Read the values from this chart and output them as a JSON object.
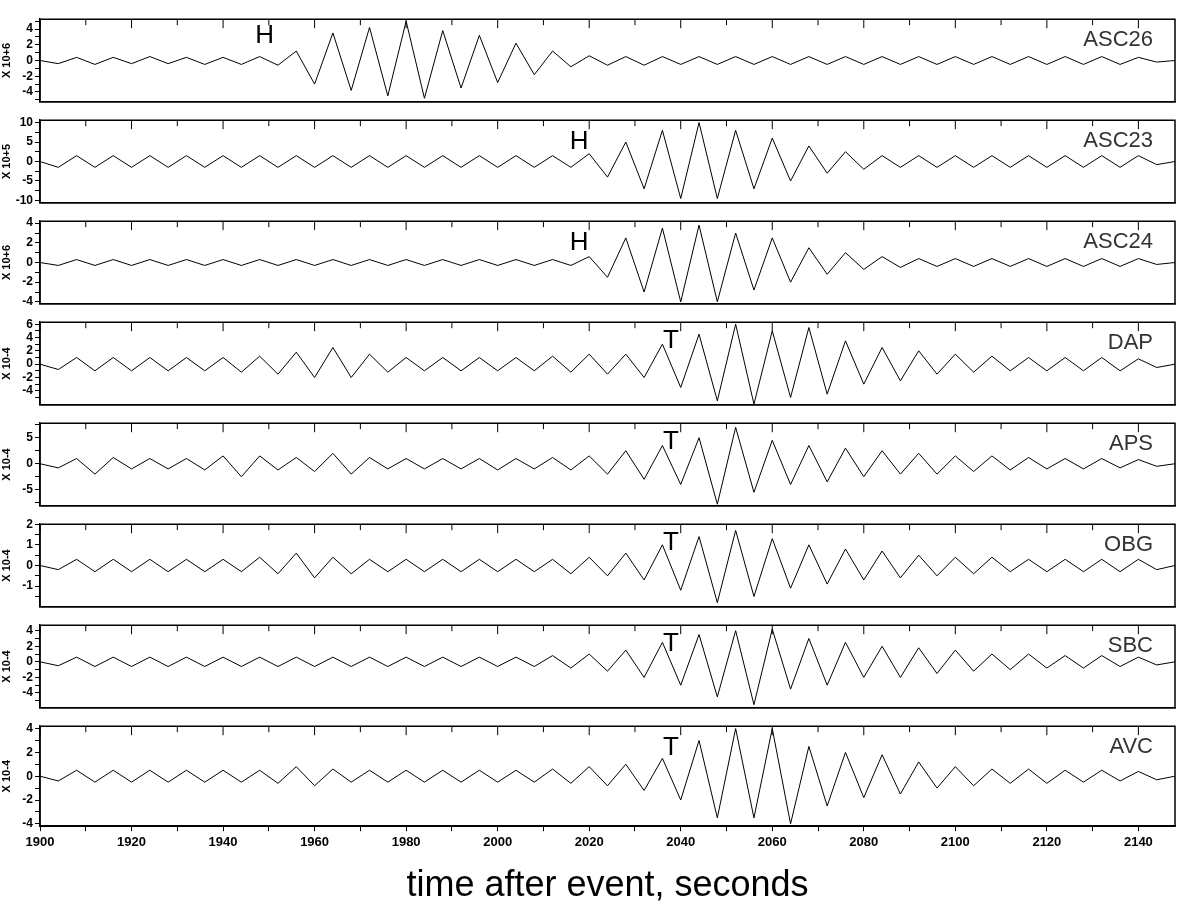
{
  "chart_data": [
    {
      "type": "line",
      "title": "ASC26",
      "ylabel": "X 10+6",
      "annotations": [
        "H"
      ],
      "color": "#000000",
      "tick_labels": "y",
      "xlim": [
        1900,
        2148
      ],
      "xticks": [
        1900,
        {
          "value": 1910,
          "label": null
        },
        1920,
        {
          "value": 1930,
          "label": null
        },
        1940,
        {
          "value": 1950,
          "label": null
        },
        1960,
        {
          "value": 1970,
          "label": null
        },
        1980,
        {
          "value": 1990,
          "label": null
        },
        2000,
        {
          "value": 2010,
          "label": null
        },
        2020,
        {
          "value": 2030,
          "label": null
        },
        2040,
        {
          "value": 2050,
          "label": null
        },
        2060,
        {
          "value": 2070,
          "label": null
        },
        2080,
        {
          "value": 2090,
          "label": null
        },
        2100,
        {
          "value": 2110,
          "label": null
        },
        2120,
        {
          "value": 2130,
          "label": null
        },
        2140
      ],
      "ylim": [
        -5.25,
        5.25
      ],
      "yticks": [
        {
          "value": -5,
          "label": null
        },
        -4,
        {
          "value": -3,
          "label": null
        },
        -2,
        {
          "value": -1,
          "label": null
        },
        0,
        {
          "value": 1,
          "label": null
        },
        2,
        {
          "value": 3,
          "label": null
        },
        4,
        {
          "value": 5,
          "label": null
        }
      ],
      "x": [
        1900,
        1904,
        1908,
        1912,
        1916,
        1920,
        1924,
        1928,
        1932,
        1936,
        1940,
        1944,
        1948,
        1952,
        1956,
        1960,
        1964,
        1968,
        1972,
        1976,
        1980,
        1984,
        1988,
        1992,
        1996,
        2000,
        2004,
        2008,
        2012,
        2016,
        2020,
        2024,
        2028,
        2032,
        2036,
        2040,
        2044,
        2048,
        2052,
        2056,
        2060,
        2064,
        2068,
        2072,
        2076,
        2080,
        2084,
        2088,
        2092,
        2096,
        2100,
        2104,
        2108,
        2112,
        2116,
        2120,
        2124,
        2128,
        2132,
        2136,
        2140,
        2144,
        2148
      ],
      "values": [
        0,
        -0.4,
        0.4,
        -0.5,
        0.4,
        -0.4,
        0.5,
        -0.4,
        0.4,
        -0.5,
        0.4,
        -0.5,
        0.5,
        -0.6,
        1.2,
        -3.0,
        3.5,
        -3.8,
        4.2,
        -4.5,
        5.0,
        -4.8,
        3.8,
        -3.5,
        3.2,
        -2.8,
        2.2,
        -1.8,
        1.2,
        -0.8,
        0.6,
        -0.6,
        0.5,
        -0.6,
        0.5,
        -0.5,
        0.5,
        -0.5,
        0.5,
        -0.5,
        0.5,
        -0.5,
        0.5,
        -0.5,
        0.5,
        -0.5,
        0.5,
        -0.5,
        0.5,
        -0.5,
        0.5,
        -0.5,
        0.5,
        -0.5,
        0.5,
        -0.5,
        0.5,
        -0.5,
        0.5,
        -0.5,
        0.4,
        -0.2,
        0
      ]
    },
    {
      "type": "line",
      "title": "ASC23",
      "ylabel": "X 10+5",
      "annotations": [
        "H"
      ],
      "color": "#000000",
      "tick_labels": "y",
      "xlim": [
        1900,
        2148
      ],
      "xticks": [
        1900,
        {
          "value": 1910,
          "label": null
        },
        1920,
        {
          "value": 1930,
          "label": null
        },
        1940,
        {
          "value": 1950,
          "label": null
        },
        1960,
        {
          "value": 1970,
          "label": null
        },
        1980,
        {
          "value": 1990,
          "label": null
        },
        2000,
        {
          "value": 2010,
          "label": null
        },
        2020,
        {
          "value": 2030,
          "label": null
        },
        2040,
        {
          "value": 2050,
          "label": null
        },
        2060,
        {
          "value": 2070,
          "label": null
        },
        2080,
        {
          "value": 2090,
          "label": null
        },
        2100,
        {
          "value": 2110,
          "label": null
        },
        2120,
        {
          "value": 2130,
          "label": null
        },
        2140
      ],
      "ylim": [
        -10.6,
        10.6
      ],
      "yticks": [
        -10,
        {
          "value": -7.5,
          "label": null
        },
        -5,
        {
          "value": -2.5,
          "label": null
        },
        0,
        {
          "value": 2.5,
          "label": null
        },
        5,
        {
          "value": 7.5,
          "label": null
        },
        10
      ],
      "x": [
        1900,
        1904,
        1908,
        1912,
        1916,
        1920,
        1924,
        1928,
        1932,
        1936,
        1940,
        1944,
        1948,
        1952,
        1956,
        1960,
        1964,
        1968,
        1972,
        1976,
        1980,
        1984,
        1988,
        1992,
        1996,
        2000,
        2004,
        2008,
        2012,
        2016,
        2020,
        2024,
        2028,
        2032,
        2036,
        2040,
        2044,
        2048,
        2052,
        2056,
        2060,
        2064,
        2068,
        2072,
        2076,
        2080,
        2084,
        2088,
        2092,
        2096,
        2100,
        2104,
        2108,
        2112,
        2116,
        2120,
        2124,
        2128,
        2132,
        2136,
        2140,
        2144,
        2148
      ],
      "values": [
        0,
        -1.5,
        1.5,
        -1.5,
        1.5,
        -1.5,
        1.5,
        -1.5,
        1.5,
        -1.5,
        1.5,
        -1.5,
        1.5,
        -1.5,
        1.5,
        -1.5,
        1.5,
        -1.5,
        1.5,
        -1.5,
        1.5,
        -1.5,
        1.5,
        -1.5,
        1.5,
        -1.5,
        1.5,
        -1.5,
        1.5,
        -1.5,
        2,
        -4,
        5,
        -7,
        8,
        -9.5,
        10,
        -9.5,
        8,
        -7,
        6,
        -5,
        4,
        -3,
        2.5,
        -2,
        1.5,
        -1.5,
        1.5,
        -1.5,
        1.5,
        -1.5,
        1.5,
        -1.5,
        1.5,
        -1.5,
        1.5,
        -1.5,
        1.5,
        -1.5,
        1.5,
        -0.8,
        0
      ]
    },
    {
      "type": "line",
      "title": "ASC24",
      "ylabel": "X 10+6",
      "annotations": [
        "H"
      ],
      "color": "#000000",
      "tick_labels": "y",
      "xlim": [
        1900,
        2148
      ],
      "xticks": [
        1900,
        {
          "value": 1910,
          "label": null
        },
        1920,
        {
          "value": 1930,
          "label": null
        },
        1940,
        {
          "value": 1950,
          "label": null
        },
        1960,
        {
          "value": 1970,
          "label": null
        },
        1980,
        {
          "value": 1990,
          "label": null
        },
        2000,
        {
          "value": 2010,
          "label": null
        },
        2020,
        {
          "value": 2030,
          "label": null
        },
        2040,
        {
          "value": 2050,
          "label": null
        },
        2060,
        {
          "value": 2070,
          "label": null
        },
        2080,
        {
          "value": 2090,
          "label": null
        },
        2100,
        {
          "value": 2110,
          "label": null
        },
        2120,
        {
          "value": 2130,
          "label": null
        },
        2140
      ],
      "ylim": [
        -4.2,
        4.2
      ],
      "yticks": [
        -4,
        {
          "value": -3,
          "label": null
        },
        -2,
        {
          "value": -1,
          "label": null
        },
        0,
        {
          "value": 1,
          "label": null
        },
        2,
        {
          "value": 3,
          "label": null
        },
        4
      ],
      "x": [
        1900,
        1904,
        1908,
        1912,
        1916,
        1920,
        1924,
        1928,
        1932,
        1936,
        1940,
        1944,
        1948,
        1952,
        1956,
        1960,
        1964,
        1968,
        1972,
        1976,
        1980,
        1984,
        1988,
        1992,
        1996,
        2000,
        2004,
        2008,
        2012,
        2016,
        2020,
        2024,
        2028,
        2032,
        2036,
        2040,
        2044,
        2048,
        2052,
        2056,
        2060,
        2064,
        2068,
        2072,
        2076,
        2080,
        2084,
        2088,
        2092,
        2096,
        2100,
        2104,
        2108,
        2112,
        2116,
        2120,
        2124,
        2128,
        2132,
        2136,
        2140,
        2144,
        2148
      ],
      "values": [
        0,
        -0.3,
        0.3,
        -0.3,
        0.3,
        -0.3,
        0.3,
        -0.3,
        0.3,
        -0.3,
        0.3,
        -0.3,
        0.3,
        -0.3,
        0.3,
        -0.3,
        0.3,
        -0.3,
        0.3,
        -0.3,
        0.3,
        -0.3,
        0.3,
        -0.3,
        0.3,
        -0.3,
        0.3,
        -0.3,
        0.3,
        -0.3,
        0.6,
        -1.5,
        2.5,
        -3.0,
        3.5,
        -4.0,
        3.8,
        -4.0,
        3.0,
        -2.8,
        2.5,
        -2.0,
        1.5,
        -1.2,
        1.0,
        -0.7,
        0.6,
        -0.5,
        0.4,
        -0.4,
        0.4,
        -0.4,
        0.4,
        -0.4,
        0.4,
        -0.4,
        0.4,
        -0.4,
        0.4,
        -0.4,
        0.4,
        -0.2,
        0
      ]
    },
    {
      "type": "line",
      "title": "DAP",
      "ylabel": "X 10-4",
      "annotations": [
        "T"
      ],
      "color": "#000000",
      "tick_labels": "y",
      "xlim": [
        1900,
        2148
      ],
      "xticks": [
        1900,
        {
          "value": 1910,
          "label": null
        },
        1920,
        {
          "value": 1930,
          "label": null
        },
        1940,
        {
          "value": 1950,
          "label": null
        },
        1960,
        {
          "value": 1970,
          "label": null
        },
        1980,
        {
          "value": 1990,
          "label": null
        },
        2000,
        {
          "value": 2010,
          "label": null
        },
        2020,
        {
          "value": 2030,
          "label": null
        },
        2040,
        {
          "value": 2050,
          "label": null
        },
        2060,
        {
          "value": 2070,
          "label": null
        },
        2080,
        {
          "value": 2090,
          "label": null
        },
        2100,
        {
          "value": 2110,
          "label": null
        },
        2120,
        {
          "value": 2130,
          "label": null
        },
        2140
      ],
      "ylim": [
        -6.1,
        6.3
      ],
      "yticks": [
        {
          "value": -5,
          "label": null
        },
        -4,
        {
          "value": -3,
          "label": null
        },
        -2,
        {
          "value": -1,
          "label": null
        },
        0,
        {
          "value": 1,
          "label": null
        },
        2,
        {
          "value": 3,
          "label": null
        },
        4,
        {
          "value": 5,
          "label": null
        },
        6
      ],
      "x": [
        1900,
        1904,
        1908,
        1912,
        1916,
        1920,
        1924,
        1928,
        1932,
        1936,
        1940,
        1944,
        1948,
        1952,
        1956,
        1960,
        1964,
        1968,
        1972,
        1976,
        1980,
        1984,
        1988,
        1992,
        1996,
        2000,
        2004,
        2008,
        2012,
        2016,
        2020,
        2024,
        2028,
        2032,
        2036,
        2040,
        2044,
        2048,
        2052,
        2056,
        2060,
        2064,
        2068,
        2072,
        2076,
        2080,
        2084,
        2088,
        2092,
        2096,
        2100,
        2104,
        2108,
        2112,
        2116,
        2120,
        2124,
        2128,
        2132,
        2136,
        2140,
        2144,
        2148
      ],
      "values": [
        0,
        -0.8,
        1.0,
        -1.0,
        1.0,
        -1.0,
        1.0,
        -1.0,
        1.0,
        -1.0,
        1.0,
        -1.2,
        1.2,
        -1.5,
        1.8,
        -2.0,
        2.5,
        -2.0,
        1.5,
        -1.2,
        1.0,
        -1.0,
        1.0,
        -1.0,
        1.0,
        -1.0,
        1.0,
        -1.0,
        1.2,
        -1.2,
        1.5,
        -1.5,
        1.5,
        -2.0,
        3.0,
        -3.5,
        4.5,
        -5.5,
        6.0,
        -6.0,
        5.0,
        -5.0,
        5.5,
        -4.5,
        3.5,
        -3.0,
        2.5,
        -2.5,
        2.0,
        -1.5,
        1.5,
        -1.2,
        1.2,
        -1.0,
        1.0,
        -1.0,
        1.0,
        -1.0,
        1.0,
        -1.0,
        0.8,
        -0.5,
        0
      ]
    },
    {
      "type": "line",
      "title": "APS",
      "ylabel": "X 10-4",
      "annotations": [
        "T"
      ],
      "color": "#000000",
      "tick_labels": "y",
      "xlim": [
        1900,
        2148
      ],
      "xticks": [
        1900,
        {
          "value": 1910,
          "label": null
        },
        1920,
        {
          "value": 1930,
          "label": null
        },
        1940,
        {
          "value": 1950,
          "label": null
        },
        1960,
        {
          "value": 1970,
          "label": null
        },
        1980,
        {
          "value": 1990,
          "label": null
        },
        2000,
        {
          "value": 2010,
          "label": null
        },
        2020,
        {
          "value": 2030,
          "label": null
        },
        2040,
        {
          "value": 2050,
          "label": null
        },
        2060,
        {
          "value": 2070,
          "label": null
        },
        2080,
        {
          "value": 2090,
          "label": null
        },
        2100,
        {
          "value": 2110,
          "label": null
        },
        2120,
        {
          "value": 2130,
          "label": null
        },
        2140
      ],
      "ylim": [
        -8.1,
        7.8
      ],
      "yticks": [
        {
          "value": -7.5,
          "label": null
        },
        -5,
        {
          "value": -2.5,
          "label": null
        },
        0,
        {
          "value": 2.5,
          "label": null
        },
        5,
        {
          "value": 7.5,
          "label": null
        }
      ],
      "x": [
        1900,
        1904,
        1908,
        1912,
        1916,
        1920,
        1924,
        1928,
        1932,
        1936,
        1940,
        1944,
        1948,
        1952,
        1956,
        1960,
        1964,
        1968,
        1972,
        1976,
        1980,
        1984,
        1988,
        1992,
        1996,
        2000,
        2004,
        2008,
        2012,
        2016,
        2020,
        2024,
        2028,
        2032,
        2036,
        2040,
        2044,
        2048,
        2052,
        2056,
        2060,
        2064,
        2068,
        2072,
        2076,
        2080,
        2084,
        2088,
        2092,
        2096,
        2100,
        2104,
        2108,
        2112,
        2116,
        2120,
        2124,
        2128,
        2132,
        2136,
        2140,
        2144,
        2148
      ],
      "values": [
        0,
        -0.8,
        1.0,
        -2.0,
        1.2,
        -1.0,
        1.0,
        -1.0,
        1.0,
        -1.2,
        1.5,
        -2.5,
        1.5,
        -1.2,
        1.2,
        -1.5,
        2.0,
        -2.0,
        1.2,
        -1.0,
        1.0,
        -1.0,
        1.0,
        -1.0,
        1.0,
        -1.2,
        1.0,
        -1.0,
        1.2,
        -1.2,
        1.5,
        -2.0,
        2.5,
        -3.0,
        3.5,
        -4.0,
        5.0,
        -7.8,
        7.0,
        -5.5,
        4.5,
        -4.0,
        3.5,
        -3.5,
        3.0,
        -2.5,
        2.5,
        -2.0,
        2.0,
        -2.0,
        1.5,
        -1.5,
        1.5,
        -1.2,
        1.2,
        -1.0,
        1.0,
        -1.0,
        1.0,
        -0.8,
        0.8,
        -0.5,
        0
      ]
    },
    {
      "type": "line",
      "title": "OBG",
      "ylabel": "X 10-4",
      "annotations": [
        "T"
      ],
      "color": "#000000",
      "tick_labels": "y",
      "xlim": [
        1900,
        2148
      ],
      "xticks": [
        1900,
        {
          "value": 1910,
          "label": null
        },
        1920,
        {
          "value": 1930,
          "label": null
        },
        1940,
        {
          "value": 1950,
          "label": null
        },
        1960,
        {
          "value": 1970,
          "label": null
        },
        1980,
        {
          "value": 1990,
          "label": null
        },
        2000,
        {
          "value": 2010,
          "label": null
        },
        2020,
        {
          "value": 2030,
          "label": null
        },
        2040,
        {
          "value": 2050,
          "label": null
        },
        2060,
        {
          "value": 2070,
          "label": null
        },
        2080,
        {
          "value": 2090,
          "label": null
        },
        2100,
        {
          "value": 2110,
          "label": null
        },
        2120,
        {
          "value": 2130,
          "label": null
        },
        2140
      ],
      "ylim": [
        -2,
        2
      ],
      "yticks": [
        {
          "value": -1.5,
          "label": null
        },
        -1,
        {
          "value": -0.5,
          "label": null
        },
        0,
        {
          "value": 0.5,
          "label": null
        },
        1,
        {
          "value": 1.5,
          "label": null
        },
        2
      ],
      "x": [
        1900,
        1904,
        1908,
        1912,
        1916,
        1920,
        1924,
        1928,
        1932,
        1936,
        1940,
        1944,
        1948,
        1952,
        1956,
        1960,
        1964,
        1968,
        1972,
        1976,
        1980,
        1984,
        1988,
        1992,
        1996,
        2000,
        2004,
        2008,
        2012,
        2016,
        2020,
        2024,
        2028,
        2032,
        2036,
        2040,
        2044,
        2048,
        2052,
        2056,
        2060,
        2064,
        2068,
        2072,
        2076,
        2080,
        2084,
        2088,
        2092,
        2096,
        2100,
        2104,
        2108,
        2112,
        2116,
        2120,
        2124,
        2128,
        2132,
        2136,
        2140,
        2144,
        2148
      ],
      "values": [
        0,
        -0.2,
        0.3,
        -0.3,
        0.3,
        -0.3,
        0.3,
        -0.3,
        0.3,
        -0.3,
        0.3,
        -0.3,
        0.4,
        -0.4,
        0.6,
        -0.6,
        0.4,
        -0.4,
        0.3,
        -0.3,
        0.3,
        -0.3,
        0.3,
        -0.3,
        0.3,
        -0.3,
        0.3,
        -0.3,
        0.3,
        -0.4,
        0.4,
        -0.5,
        0.6,
        -0.7,
        1.0,
        -1.2,
        1.4,
        -1.8,
        1.7,
        -1.5,
        1.3,
        -1.1,
        1.0,
        -0.9,
        0.8,
        -0.7,
        0.7,
        -0.6,
        0.5,
        -0.5,
        0.4,
        -0.4,
        0.4,
        -0.3,
        0.3,
        -0.3,
        0.3,
        -0.3,
        0.3,
        -0.3,
        0.3,
        -0.2,
        0
      ]
    },
    {
      "type": "line",
      "title": "SBC",
      "ylabel": "X 10-4",
      "annotations": [
        "T"
      ],
      "color": "#000000",
      "tick_labels": "y",
      "xlim": [
        1900,
        2148
      ],
      "xticks": [
        1900,
        {
          "value": 1910,
          "label": null
        },
        1920,
        {
          "value": 1930,
          "label": null
        },
        1940,
        {
          "value": 1950,
          "label": null
        },
        1960,
        {
          "value": 1970,
          "label": null
        },
        1980,
        {
          "value": 1990,
          "label": null
        },
        2000,
        {
          "value": 2010,
          "label": null
        },
        2020,
        {
          "value": 2030,
          "label": null
        },
        2040,
        {
          "value": 2050,
          "label": null
        },
        2060,
        {
          "value": 2070,
          "label": null
        },
        2080,
        {
          "value": 2090,
          "label": null
        },
        2100,
        {
          "value": 2110,
          "label": null
        },
        2120,
        {
          "value": 2130,
          "label": null
        },
        2140
      ],
      "ylim": [
        -5.9,
        4.7
      ],
      "yticks": [
        {
          "value": -5,
          "label": null
        },
        -4,
        {
          "value": -3,
          "label": null
        },
        -2,
        {
          "value": -1,
          "label": null
        },
        0,
        {
          "value": 1,
          "label": null
        },
        2,
        {
          "value": 3,
          "label": null
        },
        4
      ],
      "x": [
        1900,
        1904,
        1908,
        1912,
        1916,
        1920,
        1924,
        1928,
        1932,
        1936,
        1940,
        1944,
        1948,
        1952,
        1956,
        1960,
        1964,
        1968,
        1972,
        1976,
        1980,
        1984,
        1988,
        1992,
        1996,
        2000,
        2004,
        2008,
        2012,
        2016,
        2020,
        2024,
        2028,
        2032,
        2036,
        2040,
        2044,
        2048,
        2052,
        2056,
        2060,
        2064,
        2068,
        2072,
        2076,
        2080,
        2084,
        2088,
        2092,
        2096,
        2100,
        2104,
        2108,
        2112,
        2116,
        2120,
        2124,
        2128,
        2132,
        2136,
        2140,
        2144,
        2148
      ],
      "values": [
        0,
        -0.5,
        0.6,
        -0.6,
        0.6,
        -0.6,
        0.6,
        -0.6,
        0.6,
        -0.6,
        0.6,
        -0.6,
        0.6,
        -0.6,
        0.6,
        -0.6,
        0.6,
        -0.6,
        0.6,
        -0.6,
        0.6,
        -0.6,
        0.6,
        -0.6,
        0.6,
        -0.6,
        0.6,
        -0.6,
        0.8,
        -0.8,
        1.0,
        -1.2,
        1.5,
        -2.0,
        2.5,
        -3.0,
        3.5,
        -4.5,
        4.0,
        -5.5,
        4.2,
        -3.5,
        3.0,
        -3.0,
        2.5,
        -2.0,
        2.0,
        -2.0,
        1.8,
        -1.5,
        1.5,
        -1.2,
        1.0,
        -1.0,
        1.0,
        -0.8,
        0.8,
        -0.8,
        0.8,
        -0.6,
        0.6,
        -0.4,
        0
      ]
    },
    {
      "type": "line",
      "title": "AVC",
      "ylabel": "X 10-4",
      "xlabel": "time after event, seconds",
      "annotations": [
        "T"
      ],
      "color": "#000000",
      "xlim": [
        1900,
        2148
      ],
      "xticks": [
        1900,
        {
          "value": 1910,
          "label": null
        },
        1920,
        {
          "value": 1930,
          "label": null
        },
        1940,
        {
          "value": 1950,
          "label": null
        },
        1960,
        {
          "value": 1970,
          "label": null
        },
        1980,
        {
          "value": 1990,
          "label": null
        },
        2000,
        {
          "value": 2010,
          "label": null
        },
        2020,
        {
          "value": 2030,
          "label": null
        },
        2040,
        {
          "value": 2050,
          "label": null
        },
        2060,
        {
          "value": 2070,
          "label": null
        },
        2080,
        {
          "value": 2090,
          "label": null
        },
        2100,
        {
          "value": 2110,
          "label": null
        },
        2120,
        {
          "value": 2130,
          "label": null
        },
        2140
      ],
      "ylim": [
        -4.2,
        4.2
      ],
      "yticks": [
        -4,
        {
          "value": -3,
          "label": null
        },
        -2,
        {
          "value": -1,
          "label": null
        },
        0,
        {
          "value": 1,
          "label": null
        },
        2,
        {
          "value": 3,
          "label": null
        },
        4
      ],
      "x": [
        1900,
        1904,
        1908,
        1912,
        1916,
        1920,
        1924,
        1928,
        1932,
        1936,
        1940,
        1944,
        1948,
        1952,
        1956,
        1960,
        1964,
        1968,
        1972,
        1976,
        1980,
        1984,
        1988,
        1992,
        1996,
        2000,
        2004,
        2008,
        2012,
        2016,
        2020,
        2024,
        2028,
        2032,
        2036,
        2040,
        2044,
        2048,
        2052,
        2056,
        2060,
        2064,
        2068,
        2072,
        2076,
        2080,
        2084,
        2088,
        2092,
        2096,
        2100,
        2104,
        2108,
        2112,
        2116,
        2120,
        2124,
        2128,
        2132,
        2136,
        2140,
        2144,
        2148
      ],
      "values": [
        0,
        -0.4,
        0.5,
        -0.5,
        0.5,
        -0.5,
        0.5,
        -0.5,
        0.5,
        -0.5,
        0.5,
        -0.5,
        0.5,
        -0.6,
        0.8,
        -0.8,
        0.6,
        -0.5,
        0.5,
        -0.5,
        0.5,
        -0.5,
        0.5,
        -0.5,
        0.5,
        -0.5,
        0.5,
        -0.5,
        0.6,
        -0.6,
        0.8,
        -0.8,
        1.0,
        -1.2,
        1.5,
        -2.0,
        3.0,
        -3.5,
        4.0,
        -3.5,
        4.0,
        -4.0,
        2.5,
        -2.5,
        2.0,
        -1.8,
        1.8,
        -1.5,
        1.2,
        -1.0,
        0.8,
        -0.8,
        0.6,
        -0.6,
        0.6,
        -0.6,
        0.5,
        -0.5,
        0.5,
        -0.4,
        0.4,
        -0.3,
        0
      ]
    }
  ]
}
